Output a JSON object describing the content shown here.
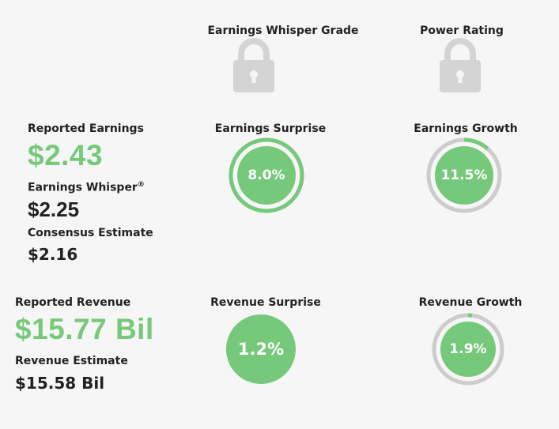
{
  "headers": {
    "grade": "Earnings Whisper Grade",
    "power": "Power Rating"
  },
  "earnings": {
    "reported_label": "Reported Earnings",
    "reported_value": "$2.43",
    "whisper_label": "Earnings Whisper",
    "whisper_mark": "®",
    "whisper_value": "$2.25",
    "consensus_label": "Consensus Estimate",
    "consensus_value": "$2.16",
    "surprise_label": "Earnings Surprise",
    "surprise_value": "8.0%",
    "surprise_fraction": 1.0,
    "growth_label": "Earnings Growth",
    "growth_value": "11.5%",
    "growth_fraction": 0.115
  },
  "revenue": {
    "reported_label": "Reported Revenue",
    "reported_value": "$15.77 Bil",
    "estimate_label": "Revenue Estimate",
    "estimate_value": "$15.58 Bil",
    "surprise_label": "Revenue Surprise",
    "surprise_value": "1.2%",
    "growth_label": "Revenue Growth",
    "growth_value": "1.9%",
    "growth_fraction": 0.019
  },
  "colors": {
    "green": "#76c97a",
    "track": "#cccccc",
    "lock": "#d4d4d4",
    "bg": "#f6f6f6"
  },
  "icons": {
    "grade_lock": "lock-icon",
    "power_lock": "lock-icon"
  }
}
